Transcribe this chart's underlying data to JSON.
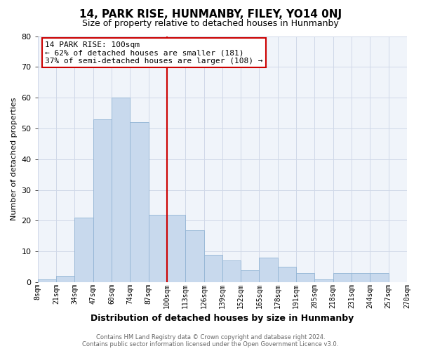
{
  "title": "14, PARK RISE, HUNMANBY, FILEY, YO14 0NJ",
  "subtitle": "Size of property relative to detached houses in Hunmanby",
  "xlabel": "Distribution of detached houses by size in Hunmanby",
  "ylabel": "Number of detached properties",
  "bin_labels": [
    "8sqm",
    "21sqm",
    "34sqm",
    "47sqm",
    "60sqm",
    "74sqm",
    "87sqm",
    "100sqm",
    "113sqm",
    "126sqm",
    "139sqm",
    "152sqm",
    "165sqm",
    "178sqm",
    "191sqm",
    "205sqm",
    "218sqm",
    "231sqm",
    "244sqm",
    "257sqm",
    "270sqm"
  ],
  "bar_values": [
    1,
    2,
    21,
    53,
    60,
    52,
    22,
    22,
    17,
    9,
    7,
    4,
    8,
    5,
    3,
    1,
    3,
    3,
    3,
    0
  ],
  "bar_color": "#c8d9ed",
  "bar_edge_color": "#92b4d4",
  "vline_color": "#cc0000",
  "annotation_line1": "14 PARK RISE: 100sqm",
  "annotation_line2": "← 62% of detached houses are smaller (181)",
  "annotation_line3": "37% of semi-detached houses are larger (108) →",
  "annotation_box_edge_color": "#cc0000",
  "ylim": [
    0,
    80
  ],
  "yticks": [
    0,
    10,
    20,
    30,
    40,
    50,
    60,
    70,
    80
  ],
  "footer_line1": "Contains HM Land Registry data © Crown copyright and database right 2024.",
  "footer_line2": "Contains public sector information licensed under the Open Government Licence v3.0.",
  "bg_color": "#f0f4fa",
  "grid_color": "#d0d8e8",
  "title_fontsize": 11,
  "subtitle_fontsize": 9,
  "xlabel_fontsize": 9,
  "ylabel_fontsize": 8,
  "tick_fontsize": 7,
  "annotation_fontsize": 8,
  "footer_fontsize": 6
}
